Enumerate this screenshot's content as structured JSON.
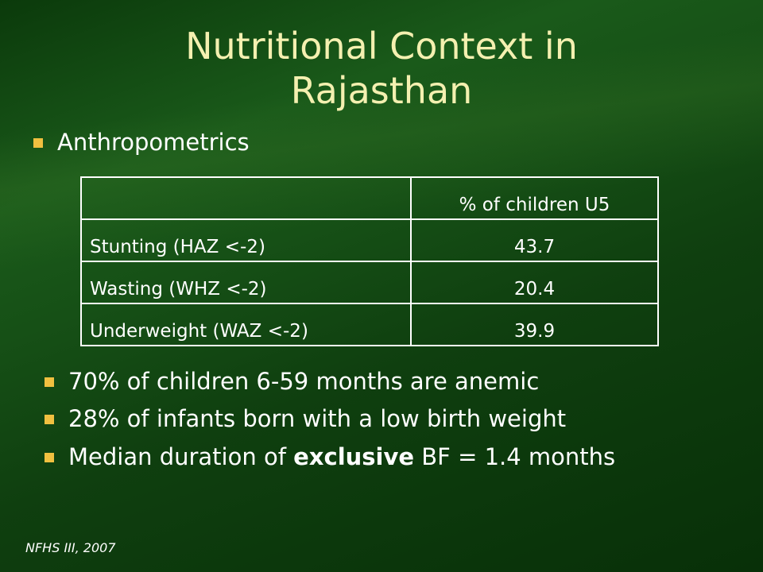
{
  "title": "Nutritional Context in Rajasthan",
  "section": "Anthropometrics",
  "table": {
    "column_header": "% of children U5",
    "rows": [
      [
        "Stunting (HAZ <-2)",
        43.7
      ],
      [
        "Wasting (WHZ <-2)",
        20.4
      ],
      [
        "Underweight (WAZ <-2)",
        39.9
      ]
    ]
  },
  "bullets": [
    "70% of children 6-59 months are anemic",
    "28% of infants born with a low birth weight",
    {
      "before": "Median duration of",
      "bold": "exclusive",
      "after": "BF = 1.4 months"
    }
  ],
  "source": "NFHS III, 2007"
}
